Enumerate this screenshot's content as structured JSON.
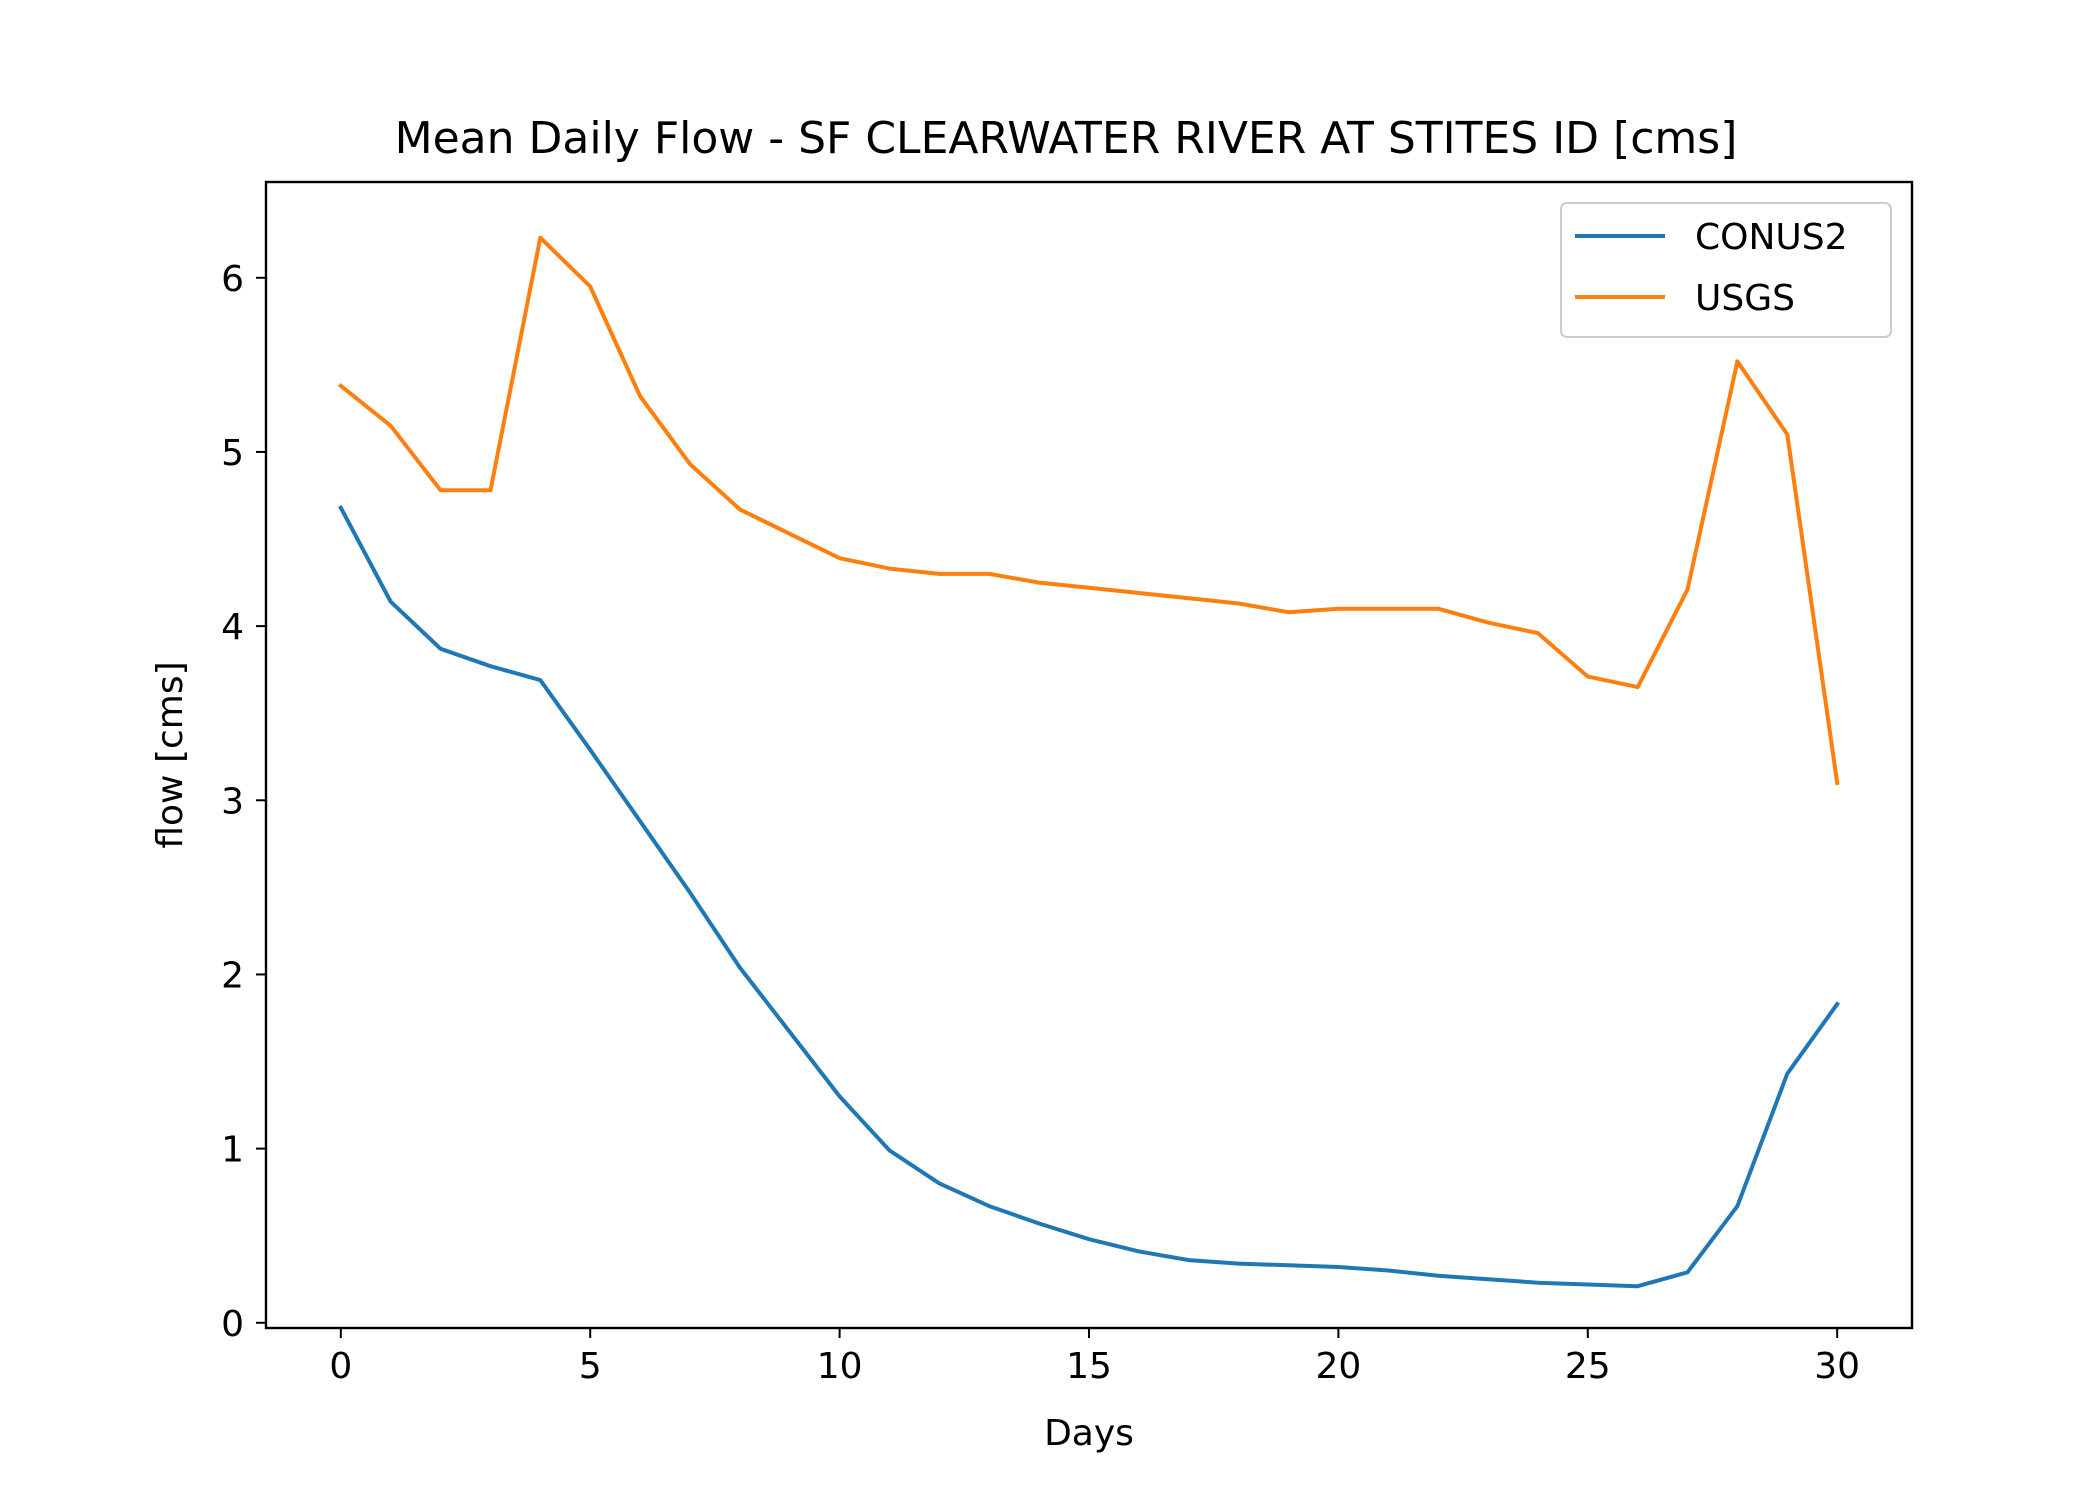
{
  "chart_data": {
    "type": "line",
    "title": "Mean Daily Flow - SF CLEARWATER RIVER AT STITES ID [cms]",
    "xlabel": "Days",
    "ylabel": "flow [cms]",
    "xlim": [
      -1.5,
      31.5
    ],
    "ylim": [
      -0.03,
      6.55
    ],
    "xticks": [
      0,
      5,
      10,
      15,
      20,
      25,
      30
    ],
    "yticks": [
      0,
      1,
      2,
      3,
      4,
      5,
      6
    ],
    "xtick_labels": [
      "0",
      "5",
      "10",
      "15",
      "20",
      "25",
      "30"
    ],
    "ytick_labels": [
      "0",
      "1",
      "2",
      "3",
      "4",
      "5",
      "6"
    ],
    "grid": false,
    "legend_position": "upper-right",
    "x": [
      0,
      1,
      2,
      3,
      4,
      5,
      6,
      7,
      8,
      9,
      10,
      11,
      12,
      13,
      14,
      15,
      16,
      17,
      18,
      19,
      20,
      21,
      22,
      23,
      24,
      25,
      26,
      27,
      28,
      29,
      30
    ],
    "series": [
      {
        "name": "CONUS2",
        "color": "#1f77b4",
        "values": [
          4.68,
          4.14,
          3.87,
          3.77,
          3.69,
          3.29,
          2.88,
          2.47,
          2.04,
          1.67,
          1.3,
          0.99,
          0.8,
          0.67,
          0.57,
          0.48,
          0.41,
          0.36,
          0.34,
          0.33,
          0.32,
          0.3,
          0.27,
          0.25,
          0.23,
          0.22,
          0.21,
          0.29,
          0.67,
          1.43,
          1.83
        ]
      },
      {
        "name": "USGS",
        "color": "#ff7f0e",
        "values": [
          5.38,
          5.15,
          4.78,
          4.78,
          6.23,
          5.95,
          5.32,
          4.93,
          4.67,
          4.53,
          4.39,
          4.33,
          4.3,
          4.3,
          4.25,
          4.22,
          4.19,
          4.16,
          4.13,
          4.08,
          4.1,
          4.1,
          4.1,
          4.02,
          3.96,
          3.71,
          3.65,
          4.21,
          5.52,
          5.1,
          3.1
        ]
      }
    ]
  }
}
